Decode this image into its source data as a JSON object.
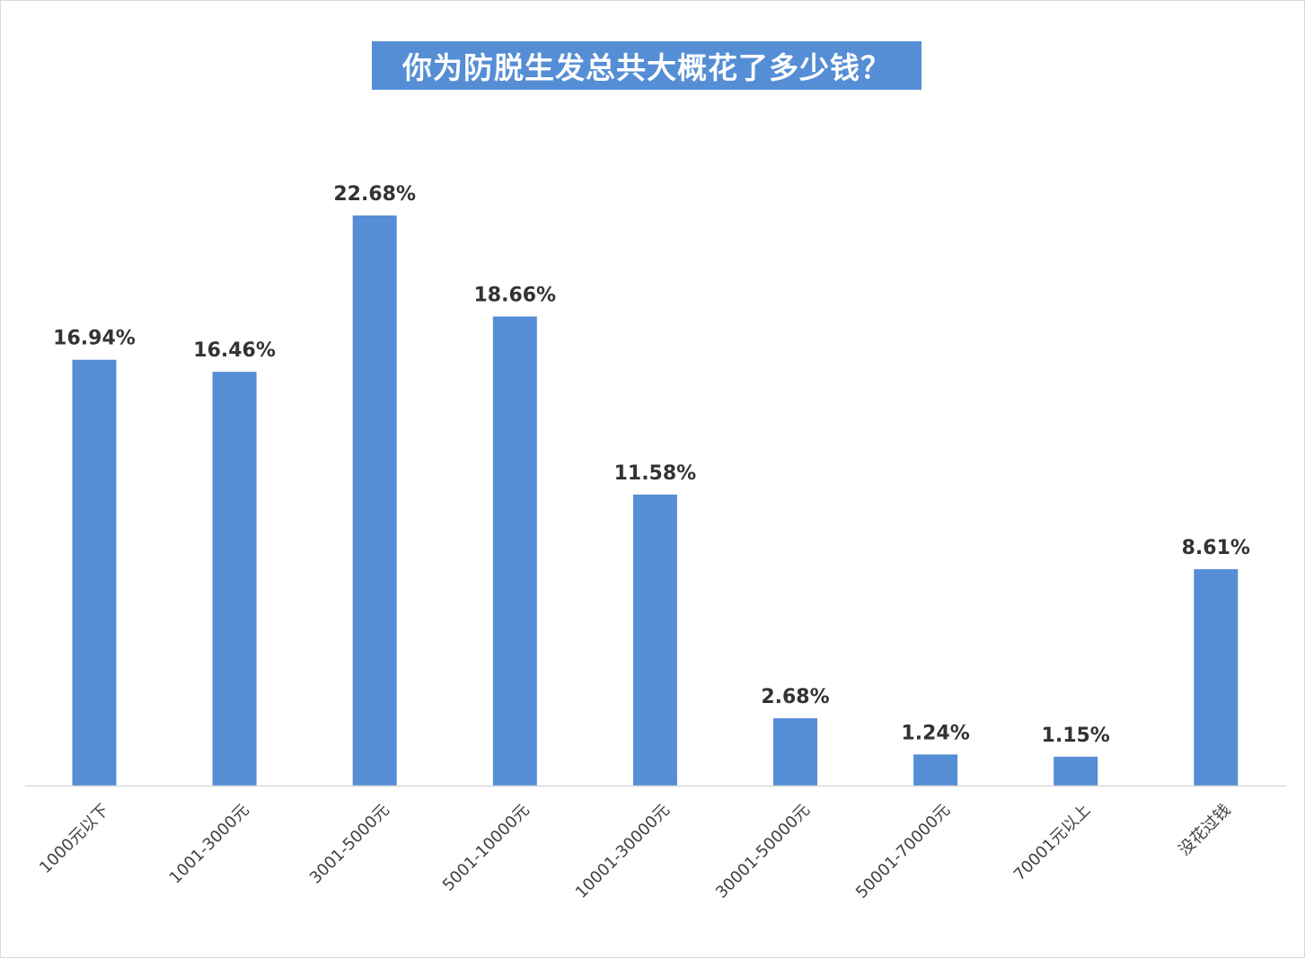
{
  "chart_data": {
    "type": "bar",
    "title": "你为防脱生发总共大概花了多少钱？",
    "categories": [
      "1000元以下",
      "1001-3000元",
      "3001-5000元",
      "5001-10000元",
      "10001-30000元",
      "30001-50000元",
      "50001-70000元",
      "70001元以上",
      "没花过钱"
    ],
    "values": [
      16.94,
      16.46,
      22.68,
      18.66,
      11.58,
      2.68,
      1.24,
      1.15,
      8.61
    ],
    "data_labels": [
      "16.94%",
      "16.46%",
      "22.68%",
      "18.66%",
      "11.58%",
      "2.68%",
      "1.24%",
      "1.15%",
      "8.61%"
    ],
    "xlabel": "",
    "ylabel": "",
    "ylim": [
      0,
      24
    ],
    "grid": false,
    "legend": "none",
    "colors": {
      "bar": "#558ed5",
      "title_background": "#558ed5",
      "title_text": "#ffffff",
      "axis": "#d9d9d9",
      "data_label": "#333333",
      "category_label": "#404040"
    }
  }
}
